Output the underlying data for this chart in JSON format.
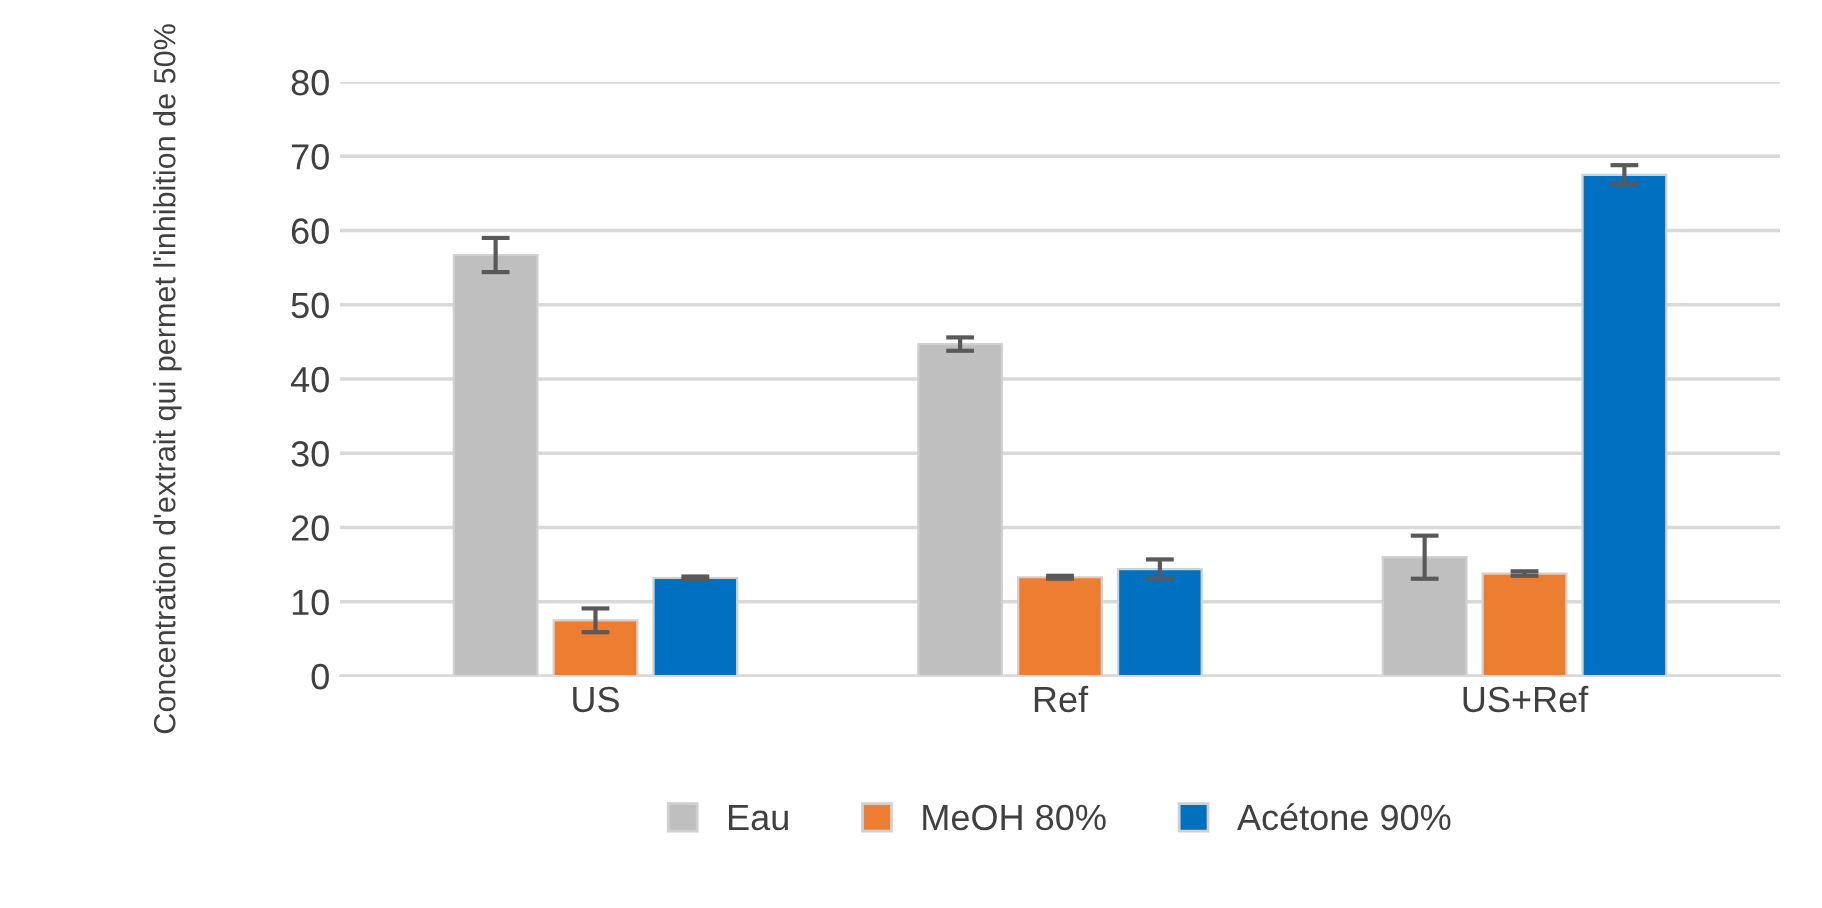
{
  "chart_data": {
    "type": "bar",
    "ylabel": "Concentration d'extrait qui permet l'inhibition de 50%",
    "categories": [
      "US",
      "Ref",
      "US+Ref"
    ],
    "series": [
      {
        "name": "Eau",
        "color": "#bfbfbf",
        "values": [
          56.7,
          44.7,
          16.0
        ],
        "errors": [
          2.3,
          0.9,
          2.9
        ]
      },
      {
        "name": "MeOH 80%",
        "color": "#ed7d31",
        "values": [
          7.5,
          13.3,
          13.8
        ],
        "errors": [
          1.6,
          0.2,
          0.3
        ]
      },
      {
        "name": "Acétone 90%",
        "color": "#0070c0",
        "values": [
          13.2,
          14.4,
          67.5
        ],
        "errors": [
          0.2,
          1.3,
          1.3
        ]
      }
    ],
    "ylim": [
      0,
      80
    ],
    "yticks": [
      0,
      10,
      20,
      30,
      40,
      50,
      60,
      70,
      80
    ],
    "grid": "y",
    "legend": "bottom"
  }
}
